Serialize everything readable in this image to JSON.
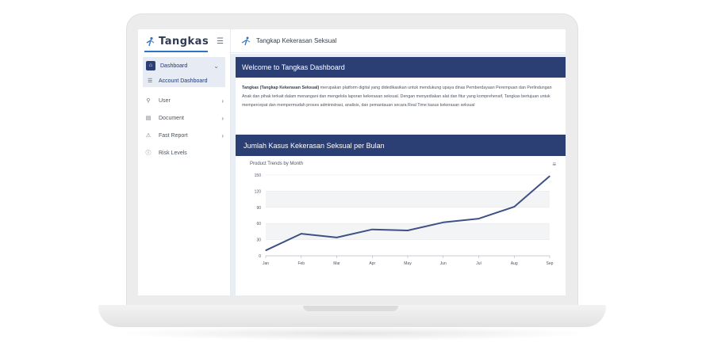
{
  "brand": {
    "name": "Tangkas"
  },
  "topbar": {
    "title": "Tangkap Kekerasan Seksual"
  },
  "sidebar": {
    "items": [
      {
        "label": "Dashboard",
        "icon": "home-icon"
      },
      {
        "label": "Account Dashboard",
        "icon": "list-icon"
      },
      {
        "label": "User",
        "icon": "user-icon"
      },
      {
        "label": "Document",
        "icon": "document-icon"
      },
      {
        "label": "Fast Report",
        "icon": "warning-icon"
      },
      {
        "label": "Risk Levels",
        "icon": "info-icon"
      }
    ]
  },
  "welcome": {
    "title": "Welcome to Tangkas Dashboard",
    "lead": "Tangkas (Tangkap Kekerasan Seksual)",
    "body": " merupakan platform digital yang didedikasikan untuk mendukung upaya dinas Pemberdayaan Perempuan dan Perlindungan Anak dan pihak terkait dalam menangani dan mengelola laporan kekerasan seksual. Dengan menyediakan alat dan fitur yang komprehensif, Tangkas bertujuan untuk mempercepat dan mempermudah proses administrasi, analisis, dan pemantauan secara Real Time kasus kekerasan seksual"
  },
  "chart_section": {
    "title": "Jumlah Kasus Kekerasan Seksual per Bulan",
    "card_title": "Product Trends by Month"
  },
  "colors": {
    "primary": "#2b3f75",
    "accent": "#2f74c6",
    "line": "#3d5184"
  },
  "chart_data": {
    "type": "line",
    "title": "Product Trends by Month",
    "categories": [
      "Jan",
      "Feb",
      "Mar",
      "Apr",
      "May",
      "Jun",
      "Jul",
      "Aug",
      "Sep"
    ],
    "series": [
      {
        "values": [
          10,
          41,
          34,
          49,
          47,
          62,
          69,
          91,
          148
        ]
      }
    ],
    "ylim": [
      0,
      150
    ],
    "yticks": [
      0,
      30,
      60,
      90,
      120,
      150
    ],
    "grid": true
  }
}
